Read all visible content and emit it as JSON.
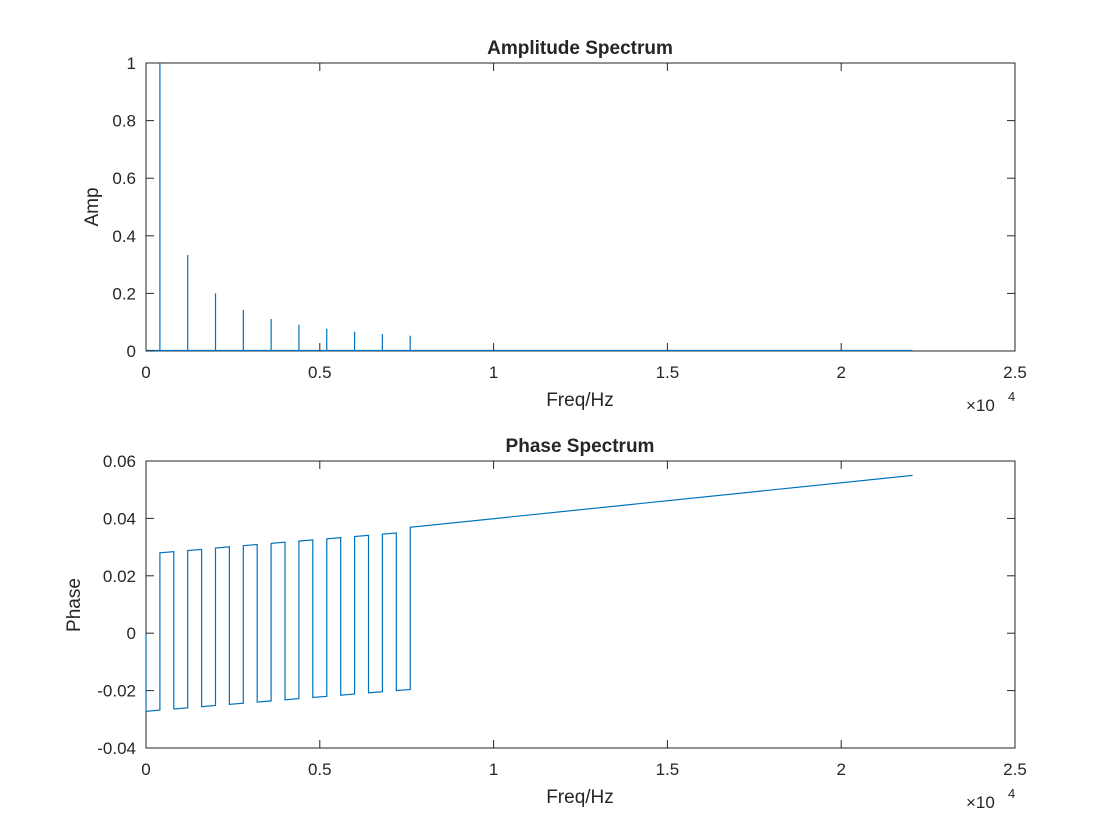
{
  "figure": {
    "colors": {
      "series": "#0072bd",
      "axes": "#262626",
      "background": "#ffffff"
    }
  },
  "chart_data": [
    {
      "type": "line",
      "title": "Amplitude Spectrum",
      "xlabel": "Freq/Hz",
      "ylabel": "Amp",
      "xlim": [
        0,
        25000
      ],
      "ylim": [
        0,
        1
      ],
      "grid": false,
      "x_exponent_label": {
        "base": "×10",
        "exponent": "4"
      },
      "xticks": [
        0,
        5000,
        10000,
        15000,
        20000,
        25000
      ],
      "xtick_labels": [
        "0",
        "0.5",
        "1",
        "1.5",
        "2",
        "2.5"
      ],
      "yticks": [
        0,
        0.2,
        0.4,
        0.6,
        0.8,
        1
      ],
      "ytick_labels": [
        "0",
        "0.2",
        "0.4",
        "0.6",
        "0.8",
        "1"
      ],
      "baseline": {
        "x": [
          0,
          22050
        ],
        "y": 0
      },
      "series": [
        {
          "x": [
            400,
            1200,
            2000,
            2800,
            3600,
            4400,
            5200,
            6000,
            6800,
            7600
          ],
          "y": [
            1.0,
            0.333,
            0.2,
            0.143,
            0.111,
            0.091,
            0.077,
            0.067,
            0.059,
            0.053
          ]
        }
      ]
    },
    {
      "type": "line",
      "title": "Phase Spectrum",
      "xlabel": "Freq/Hz",
      "ylabel": "Phase",
      "xlim": [
        0,
        25000
      ],
      "ylim": [
        -0.04,
        0.06
      ],
      "grid": false,
      "x_exponent_label": {
        "base": "×10",
        "exponent": "4"
      },
      "xticks": [
        0,
        5000,
        10000,
        15000,
        20000,
        25000
      ],
      "xtick_labels": [
        "0",
        "0.5",
        "1",
        "1.5",
        "2",
        "2.5"
      ],
      "yticks": [
        -0.04,
        -0.02,
        0,
        0.02,
        0.04,
        0.06
      ],
      "ytick_labels": [
        "-0.04",
        "-0.02",
        "0",
        "0.02",
        "0.04",
        "0.06"
      ],
      "series": [
        {
          "x": [
            0,
            0,
            400,
            400,
            800,
            800,
            1200,
            1200,
            1600,
            1600,
            2000,
            2000,
            2400,
            2400,
            2800,
            2800,
            3200,
            3200,
            3600,
            3600,
            4000,
            4000,
            4400,
            4400,
            4800,
            4800,
            5200,
            5200,
            5600,
            5600,
            6000,
            6000,
            6400,
            6400,
            6800,
            6800,
            7200,
            7200,
            7600,
            7600,
            22050
          ],
          "y": [
            0,
            -0.0272,
            -0.0268,
            0.028,
            0.0284,
            -0.0264,
            -0.026,
            0.0288,
            0.0292,
            -0.0256,
            -0.0252,
            0.0297,
            0.0301,
            -0.0248,
            -0.0244,
            0.0305,
            0.0309,
            -0.024,
            -0.0236,
            0.0313,
            0.0317,
            -0.0232,
            -0.0228,
            0.0321,
            0.0325,
            -0.0224,
            -0.022,
            0.0329,
            0.0333,
            -0.0216,
            -0.0212,
            0.0337,
            0.0341,
            -0.0208,
            -0.0204,
            0.0345,
            0.0349,
            -0.02,
            -0.0196,
            0.0369,
            0.055
          ]
        }
      ]
    }
  ]
}
